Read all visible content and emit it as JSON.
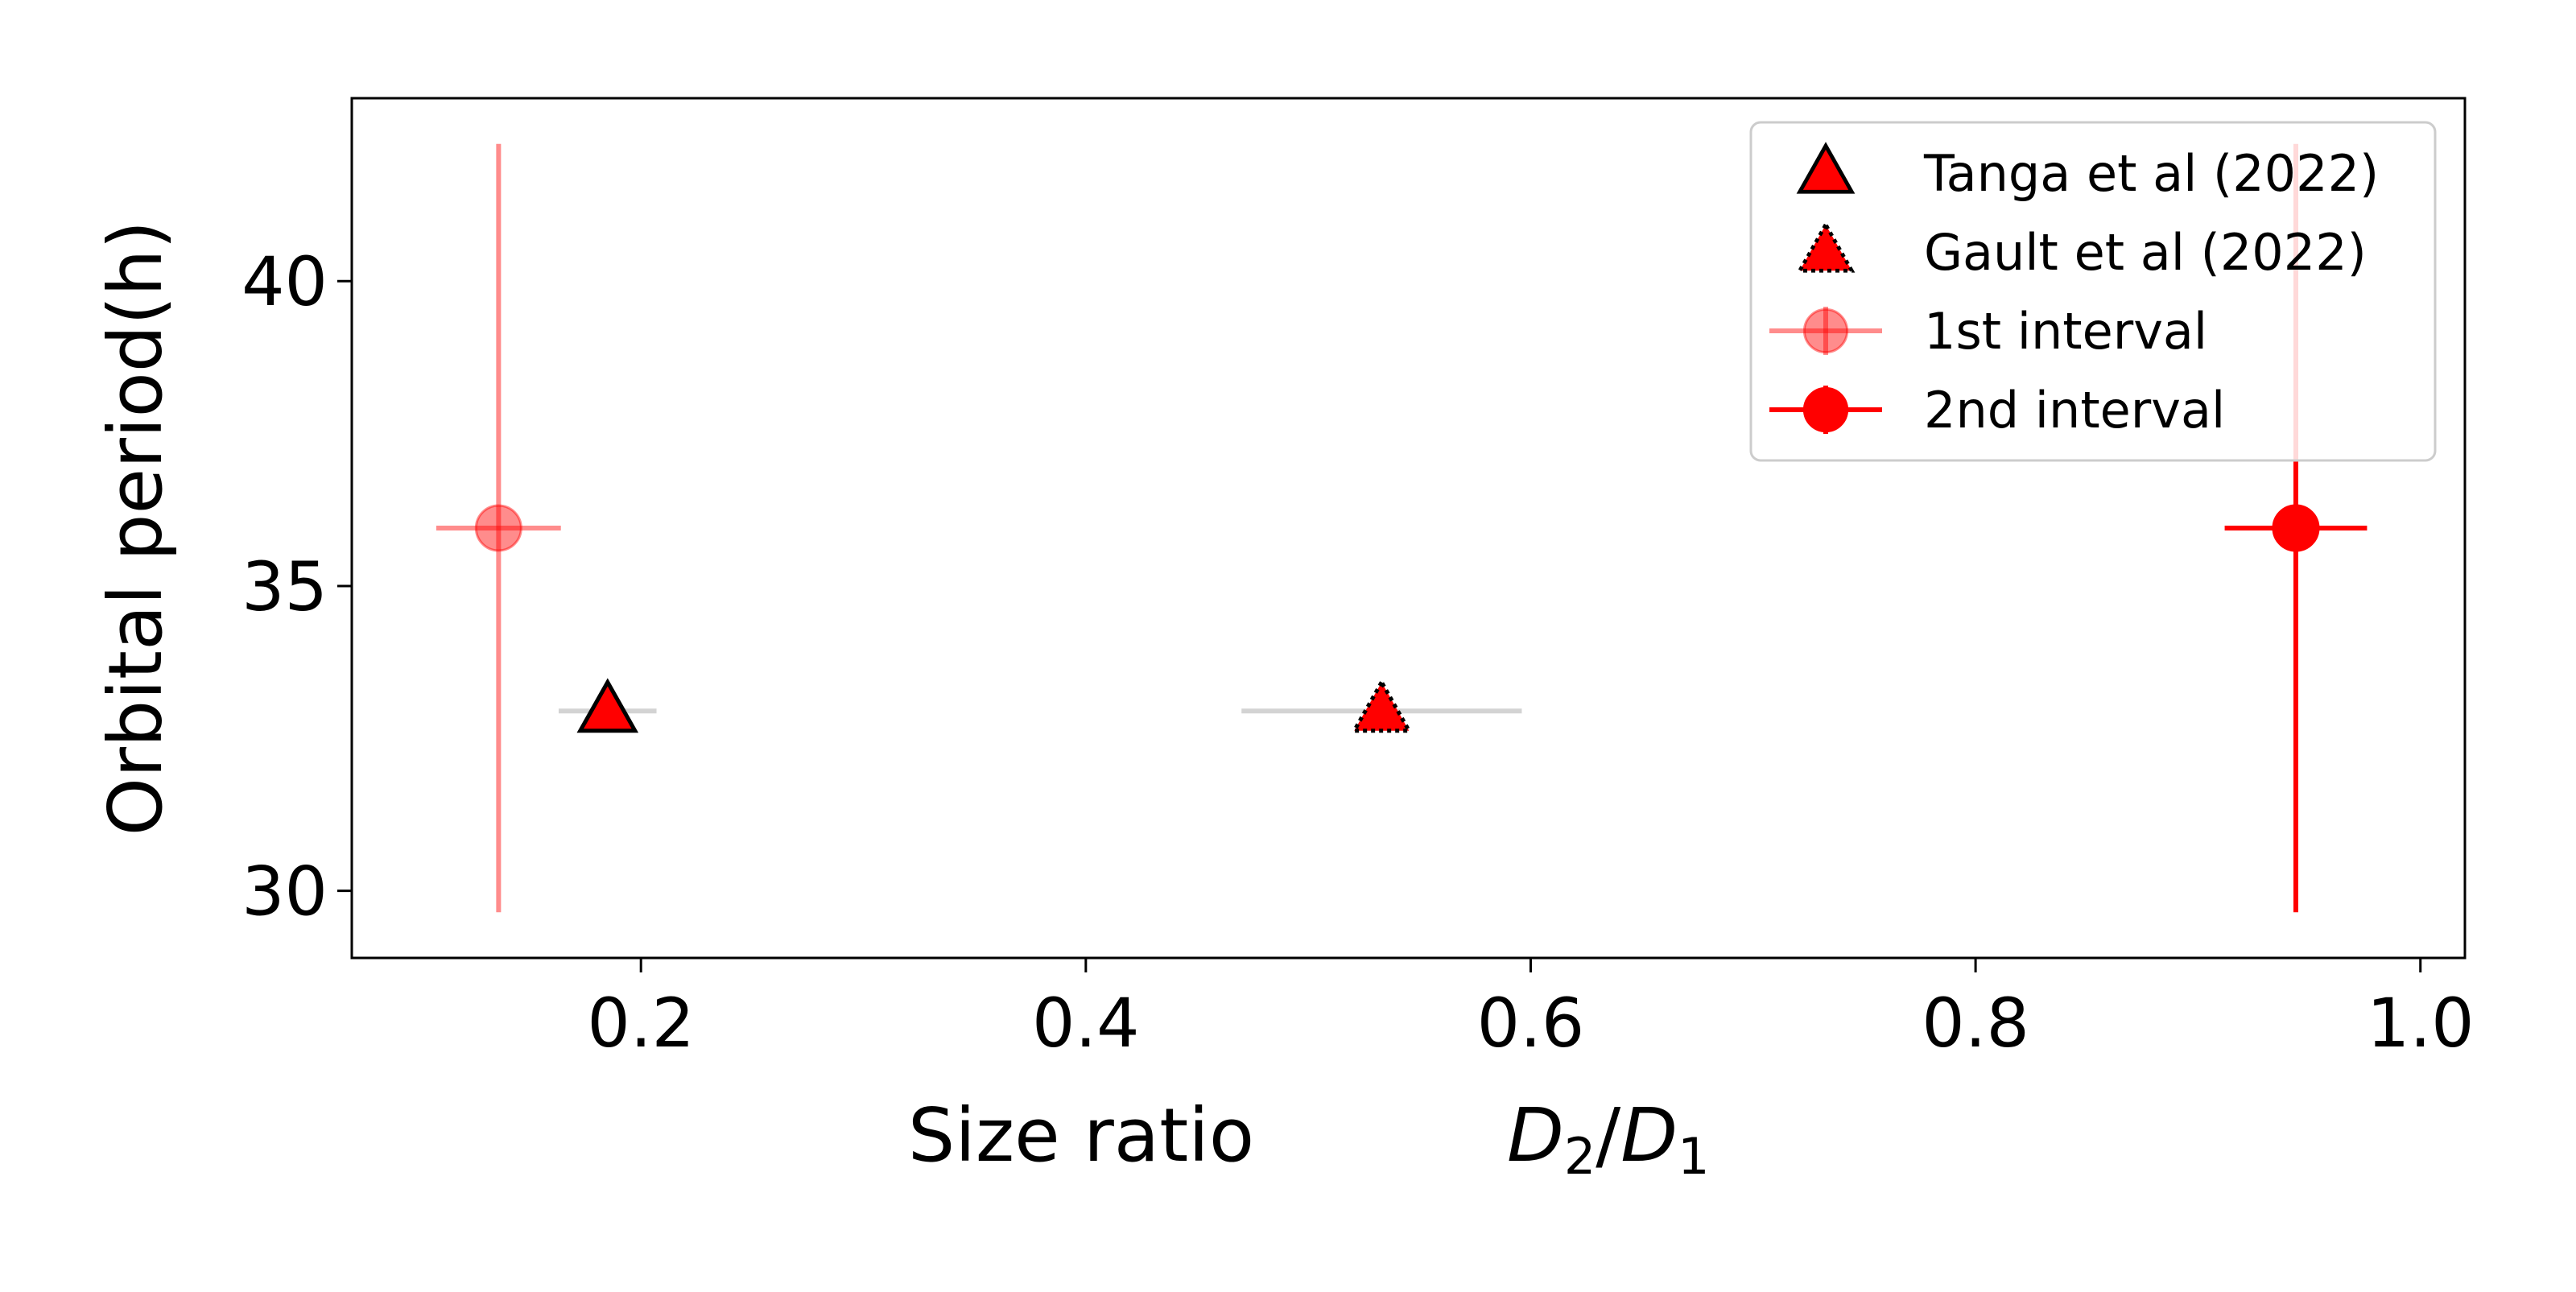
{
  "chart_data": {
    "type": "scatter",
    "xlabel": "Size ratio",
    "xlabel_math": {
      "D": "D",
      "sub2": "2",
      "slash": "/",
      "sub1": "1"
    },
    "ylabel": "Orbital period(h)",
    "xlim": [
      0.07,
      1.02
    ],
    "ylim": [
      28.9,
      43.0
    ],
    "xticks": [
      {
        "value": 0.2,
        "label": "0.2"
      },
      {
        "value": 0.4,
        "label": "0.4"
      },
      {
        "value": 0.6,
        "label": "0.6"
      },
      {
        "value": 0.8,
        "label": "0.8"
      },
      {
        "value": 1.0,
        "label": "1.0"
      }
    ],
    "yticks": [
      {
        "value": 30,
        "label": "30"
      },
      {
        "value": 35,
        "label": "35"
      },
      {
        "value": 40,
        "label": "40"
      }
    ],
    "grid": false,
    "legend_position": "top-right",
    "series": [
      {
        "name": "Tanga et al (2022)",
        "marker": "triangle",
        "color": "#ff0000",
        "edge_color": "#000000",
        "edge_style": "solid",
        "errorbar_color": "#d3d3d3",
        "points": [
          {
            "x": 0.185,
            "y": 32.95,
            "xerr": 0.022,
            "yerr": 0
          }
        ]
      },
      {
        "name": "Gault et al (2022)",
        "marker": "triangle",
        "color": "#ff0000",
        "edge_color": "#000000",
        "edge_style": "dotted",
        "errorbar_color": "#d3d3d3",
        "points": [
          {
            "x": 0.533,
            "y": 32.95,
            "xerr": 0.063,
            "yerr": 0
          }
        ]
      },
      {
        "name": "1st interval",
        "marker": "circle",
        "color": "#ff0000",
        "opacity": 0.45,
        "errorbar_color": "#ff0000",
        "points": [
          {
            "x": 0.136,
            "y": 35.95,
            "xerr": 0.028,
            "yerr": 6.3
          }
        ]
      },
      {
        "name": "2nd interval",
        "marker": "circle",
        "color": "#ff0000",
        "opacity": 1.0,
        "errorbar_color": "#ff0000",
        "points": [
          {
            "x": 0.944,
            "y": 35.95,
            "xerr": 0.032,
            "yerr": 6.3
          }
        ]
      }
    ]
  }
}
